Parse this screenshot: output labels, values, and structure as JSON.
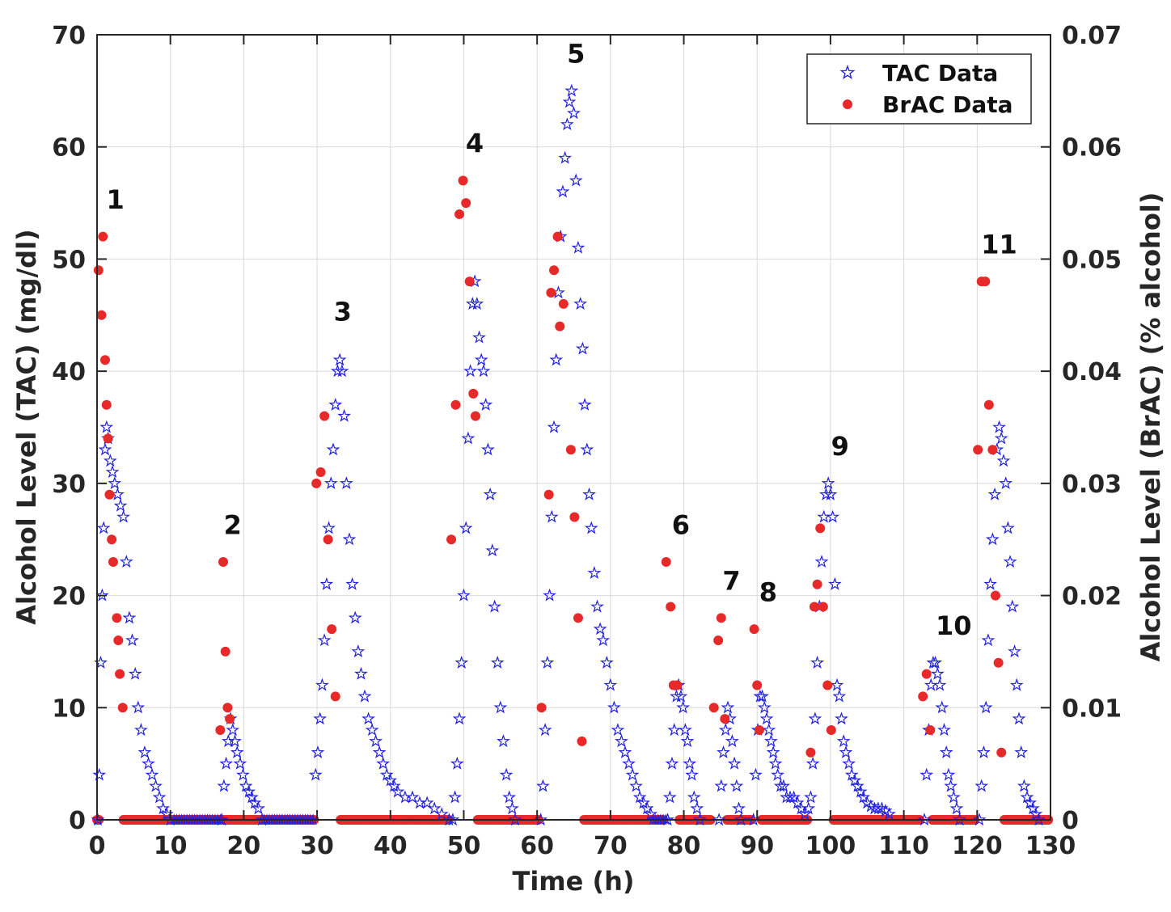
{
  "chart_data": {
    "type": "scatter",
    "xlabel": "Time (h)",
    "ylabel_left": "Alcohol Level (TAC) (mg/dl)",
    "ylabel_right": "Alcohol Level (BrAC) (% alcohol)",
    "xlim": [
      0,
      130
    ],
    "ylim_left": [
      0,
      70
    ],
    "ylim_right": [
      0,
      0.07
    ],
    "grid": true,
    "x_ticks": [
      0,
      10,
      20,
      30,
      40,
      50,
      60,
      70,
      80,
      90,
      100,
      110,
      120,
      130
    ],
    "y_left_ticks": [
      0,
      10,
      20,
      30,
      40,
      50,
      60,
      70
    ],
    "y_right_ticks": [
      "0",
      "0.01",
      "0.02",
      "0.03",
      "0.04",
      "0.05",
      "0.06",
      "0.07"
    ],
    "legend_position": "top-right",
    "colors": {
      "tac": "#1f1fe0",
      "brac": "#e8292a",
      "grid": "#d9d9d9",
      "axis": "#262626"
    },
    "series": [
      {
        "name": "TAC Data",
        "marker": "star",
        "axis": "left",
        "episodes": [
          {
            "x": [
              0.1,
              0.3,
              0.5,
              0.7,
              0.9,
              1.1,
              1.3,
              1.5,
              1.8,
              2.1,
              2.4,
              2.8,
              3.2,
              3.6,
              4.0,
              4.4,
              4.8,
              5.2,
              5.6,
              6.0,
              6.5,
              7.0,
              7.5,
              8.0,
              8.5,
              9.0,
              9.5,
              10.0
            ],
            "y": [
              0,
              4,
              14,
              20,
              26,
              33,
              35,
              34,
              32,
              31,
              30,
              29,
              28,
              27,
              23,
              18,
              16,
              13,
              10,
              8,
              6,
              5,
              4,
              3,
              2,
              1,
              0.5,
              0
            ]
          },
          {
            "x": [
              17.0,
              17.3,
              17.6,
              17.9,
              18.2,
              18.5,
              18.8,
              19.1,
              19.5,
              19.9,
              20.3,
              20.7,
              21.1,
              21.5,
              22.0,
              22.5
            ],
            "y": [
              0,
              3,
              5,
              7,
              9,
              8,
              7,
              6,
              5,
              4,
              3,
              2.5,
              2,
              1.5,
              1,
              0
            ]
          },
          {
            "x": [
              29.8,
              30.1,
              30.4,
              30.7,
              31.0,
              31.3,
              31.6,
              31.9,
              32.2,
              32.5,
              32.8,
              33.1,
              33.4,
              33.7,
              34.0,
              34.4,
              34.8,
              35.2,
              35.6,
              36.0,
              36.5,
              37.0,
              37.5,
              38.0,
              38.5,
              39.0,
              39.5,
              40.0,
              40.5,
              41.0,
              42.0,
              43.0,
              44.0,
              45.0,
              46.0,
              47.0,
              48.0
            ],
            "y": [
              4,
              6,
              9,
              12,
              16,
              21,
              26,
              30,
              33,
              37,
              40,
              41,
              40,
              36,
              30,
              25,
              21,
              18,
              15,
              13,
              11,
              9,
              8,
              7,
              6,
              5,
              4,
              3.5,
              3,
              2.5,
              2,
              2,
              1.5,
              1.5,
              1,
              0.5,
              0
            ]
          },
          {
            "x": [
              48.5,
              48.8,
              49.1,
              49.4,
              49.7,
              50.0,
              50.3,
              50.6,
              50.9,
              51.2,
              51.5,
              51.8,
              52.1,
              52.4,
              52.7,
              53.0,
              53.3,
              53.6,
              53.9,
              54.2,
              54.6,
              55.0,
              55.4,
              55.8,
              56.2,
              56.6,
              57.0
            ],
            "y": [
              0,
              2,
              5,
              9,
              14,
              20,
              26,
              34,
              40,
              46,
              48,
              46,
              43,
              41,
              40,
              37,
              33,
              29,
              24,
              19,
              14,
              10,
              7,
              4,
              2,
              1,
              0
            ]
          },
          {
            "x": [
              60.5,
              60.8,
              61.1,
              61.4,
              61.7,
              62.0,
              62.3,
              62.6,
              62.9,
              63.2,
              63.5,
              63.8,
              64.1,
              64.4,
              64.7,
              65.0,
              65.3,
              65.6,
              65.9,
              66.2,
              66.5,
              66.8,
              67.1,
              67.4,
              67.8,
              68.2,
              68.6,
              69.0,
              69.5,
              70.0,
              70.5,
              71.0,
              71.5,
              72.0,
              72.5,
              73.0,
              73.5,
              74.0,
              74.5,
              75.0,
              75.5
            ],
            "y": [
              0,
              3,
              8,
              14,
              20,
              27,
              35,
              41,
              47,
              52,
              56,
              59,
              62,
              64,
              65,
              63,
              57,
              51,
              46,
              42,
              37,
              33,
              29,
              26,
              22,
              19,
              17,
              16,
              14,
              12,
              10,
              8,
              7,
              6,
              5,
              4,
              3,
              2,
              1.5,
              1,
              0.5
            ]
          },
          {
            "x": [
              77.8,
              78.1,
              78.4,
              78.7,
              79.0,
              79.3,
              79.6,
              79.9,
              80.2,
              80.5,
              80.8,
              81.1,
              81.4,
              81.8,
              82.2
            ],
            "y": [
              0,
              2,
              5,
              8,
              11,
              12,
              11,
              10,
              8,
              7,
              5,
              4,
              2,
              1,
              0
            ]
          },
          {
            "x": [
              84.8,
              85.1,
              85.4,
              85.7,
              86.0,
              86.3,
              86.6,
              86.9,
              87.2,
              87.5,
              87.8
            ],
            "y": [
              0,
              3,
              6,
              8,
              10,
              9,
              7,
              5,
              3,
              1,
              0
            ]
          },
          {
            "x": [
              89.5,
              89.8,
              90.1,
              90.4,
              90.7,
              91.0,
              91.3,
              91.6,
              91.9,
              92.2,
              92.5,
              92.8,
              93.2,
              93.6,
              94.0,
              94.5,
              95.0,
              95.5,
              96.0,
              96.5
            ],
            "y": [
              0,
              4,
              8,
              11,
              11,
              10,
              9,
              8,
              7,
              6,
              5,
              4,
              3,
              3,
              2,
              2,
              2,
              1.5,
              1,
              0.5
            ]
          },
          {
            "x": [
              97.0,
              97.3,
              97.6,
              97.9,
              98.2,
              98.5,
              98.8,
              99.1,
              99.4,
              99.7,
              100.0,
              100.3,
              100.6,
              100.9,
              101.2,
              101.5,
              101.8,
              102.1,
              102.5,
              102.9,
              103.3,
              103.7,
              104.1,
              104.5,
              105.0,
              105.5,
              106.0,
              106.5,
              107.0,
              107.5,
              108.0
            ],
            "y": [
              1,
              2,
              5,
              9,
              14,
              19,
              23,
              27,
              29,
              30,
              29,
              27,
              21,
              12,
              11,
              9,
              7,
              6,
              5,
              4,
              3.5,
              3,
              2.5,
              2,
              1.5,
              1.2,
              1,
              1,
              1,
              0.8,
              0.5
            ]
          },
          {
            "x": [
              112.8,
              113.1,
              113.4,
              113.7,
              114.0,
              114.3,
              114.6,
              114.9,
              115.2,
              115.5,
              115.8,
              116.1,
              116.4,
              116.8,
              117.2,
              117.6
            ],
            "y": [
              0,
              4,
              8,
              12,
              14,
              14,
              13,
              12,
              10,
              8,
              6,
              4,
              3,
              2,
              1,
              0
            ]
          },
          {
            "x": [
              120.3,
              120.6,
              120.9,
              121.2,
              121.5,
              121.8,
              122.1,
              122.4,
              122.7,
              123.0,
              123.3,
              123.6,
              123.9,
              124.2,
              124.5,
              124.8,
              125.1,
              125.4,
              125.7,
              126.0,
              126.4,
              126.8,
              127.2,
              127.6,
              128.0,
              128.4
            ],
            "y": [
              0,
              3,
              6,
              10,
              16,
              21,
              25,
              29,
              33,
              35,
              34,
              32,
              30,
              26,
              23,
              19,
              15,
              12,
              9,
              6,
              3,
              2,
              1.5,
              1,
              0.5,
              0
            ]
          }
        ],
        "zero_runs": [
          [
            10.5,
            16.8
          ],
          [
            22.8,
            29.6
          ],
          [
            75.8,
            77.6
          ]
        ]
      },
      {
        "name": "BrAC Data",
        "marker": "circle",
        "axis": "right",
        "points": [
          [
            0.2,
            0.049
          ],
          [
            0.6,
            0.045
          ],
          [
            0.8,
            0.052
          ],
          [
            1.1,
            0.041
          ],
          [
            1.3,
            0.037
          ],
          [
            1.5,
            0.034
          ],
          [
            1.7,
            0.029
          ],
          [
            2.0,
            0.025
          ],
          [
            2.2,
            0.023
          ],
          [
            2.7,
            0.018
          ],
          [
            2.9,
            0.016
          ],
          [
            3.1,
            0.013
          ],
          [
            3.5,
            0.01
          ],
          [
            16.8,
            0.008
          ],
          [
            17.2,
            0.023
          ],
          [
            17.5,
            0.015
          ],
          [
            17.8,
            0.01
          ],
          [
            18.1,
            0.009
          ],
          [
            29.9,
            0.03
          ],
          [
            30.5,
            0.031
          ],
          [
            31.0,
            0.036
          ],
          [
            31.5,
            0.025
          ],
          [
            32.0,
            0.017
          ],
          [
            32.5,
            0.011
          ],
          [
            48.3,
            0.025
          ],
          [
            48.9,
            0.037
          ],
          [
            49.4,
            0.054
          ],
          [
            49.9,
            0.057
          ],
          [
            50.3,
            0.055
          ],
          [
            50.8,
            0.048
          ],
          [
            51.3,
            0.038
          ],
          [
            51.6,
            0.036
          ],
          [
            60.6,
            0.01
          ],
          [
            61.6,
            0.029
          ],
          [
            61.9,
            0.047
          ],
          [
            62.3,
            0.049
          ],
          [
            62.8,
            0.052
          ],
          [
            63.1,
            0.044
          ],
          [
            63.6,
            0.046
          ],
          [
            64.6,
            0.033
          ],
          [
            65.1,
            0.027
          ],
          [
            65.6,
            0.018
          ],
          [
            66.1,
            0.007
          ],
          [
            77.6,
            0.023
          ],
          [
            78.2,
            0.019
          ],
          [
            78.6,
            0.012
          ],
          [
            79.1,
            0.012
          ],
          [
            84.1,
            0.01
          ],
          [
            84.7,
            0.016
          ],
          [
            85.1,
            0.018
          ],
          [
            85.6,
            0.009
          ],
          [
            89.6,
            0.017
          ],
          [
            90.0,
            0.012
          ],
          [
            90.3,
            0.008
          ],
          [
            97.3,
            0.006
          ],
          [
            97.8,
            0.019
          ],
          [
            98.2,
            0.021
          ],
          [
            98.6,
            0.026
          ],
          [
            99.0,
            0.019
          ],
          [
            99.6,
            0.012
          ],
          [
            100.1,
            0.008
          ],
          [
            112.6,
            0.011
          ],
          [
            113.1,
            0.013
          ],
          [
            113.6,
            0.008
          ],
          [
            120.1,
            0.033
          ],
          [
            120.6,
            0.048
          ],
          [
            121.1,
            0.048
          ],
          [
            121.6,
            0.037
          ],
          [
            122.1,
            0.033
          ],
          [
            122.5,
            0.02
          ],
          [
            122.9,
            0.014
          ],
          [
            123.3,
            0.006
          ]
        ],
        "zero_runs": [
          [
            0,
            0.3
          ],
          [
            3.6,
            29.6
          ],
          [
            33.2,
            48.0
          ],
          [
            51.9,
            60.3
          ],
          [
            66.4,
            77.3
          ],
          [
            79.4,
            83.7
          ],
          [
            85.9,
            89.2
          ],
          [
            90.6,
            96.9
          ],
          [
            100.4,
            112.3
          ],
          [
            113.9,
            119.8
          ],
          [
            123.7,
            129.8
          ]
        ]
      }
    ],
    "annotations": [
      {
        "label": "1",
        "x": 2.5,
        "y": 54.5
      },
      {
        "label": "2",
        "x": 18.5,
        "y": 25.5
      },
      {
        "label": "3",
        "x": 33.5,
        "y": 44.5
      },
      {
        "label": "4",
        "x": 51.5,
        "y": 59.5
      },
      {
        "label": "5",
        "x": 65.3,
        "y": 67.5
      },
      {
        "label": "6",
        "x": 79.6,
        "y": 25.5
      },
      {
        "label": "7",
        "x": 86.5,
        "y": 20.5
      },
      {
        "label": "8",
        "x": 91.5,
        "y": 19.5
      },
      {
        "label": "9",
        "x": 101.3,
        "y": 32.5
      },
      {
        "label": "10",
        "x": 116.8,
        "y": 16.5
      },
      {
        "label": "11",
        "x": 123.0,
        "y": 50.5
      }
    ]
  }
}
